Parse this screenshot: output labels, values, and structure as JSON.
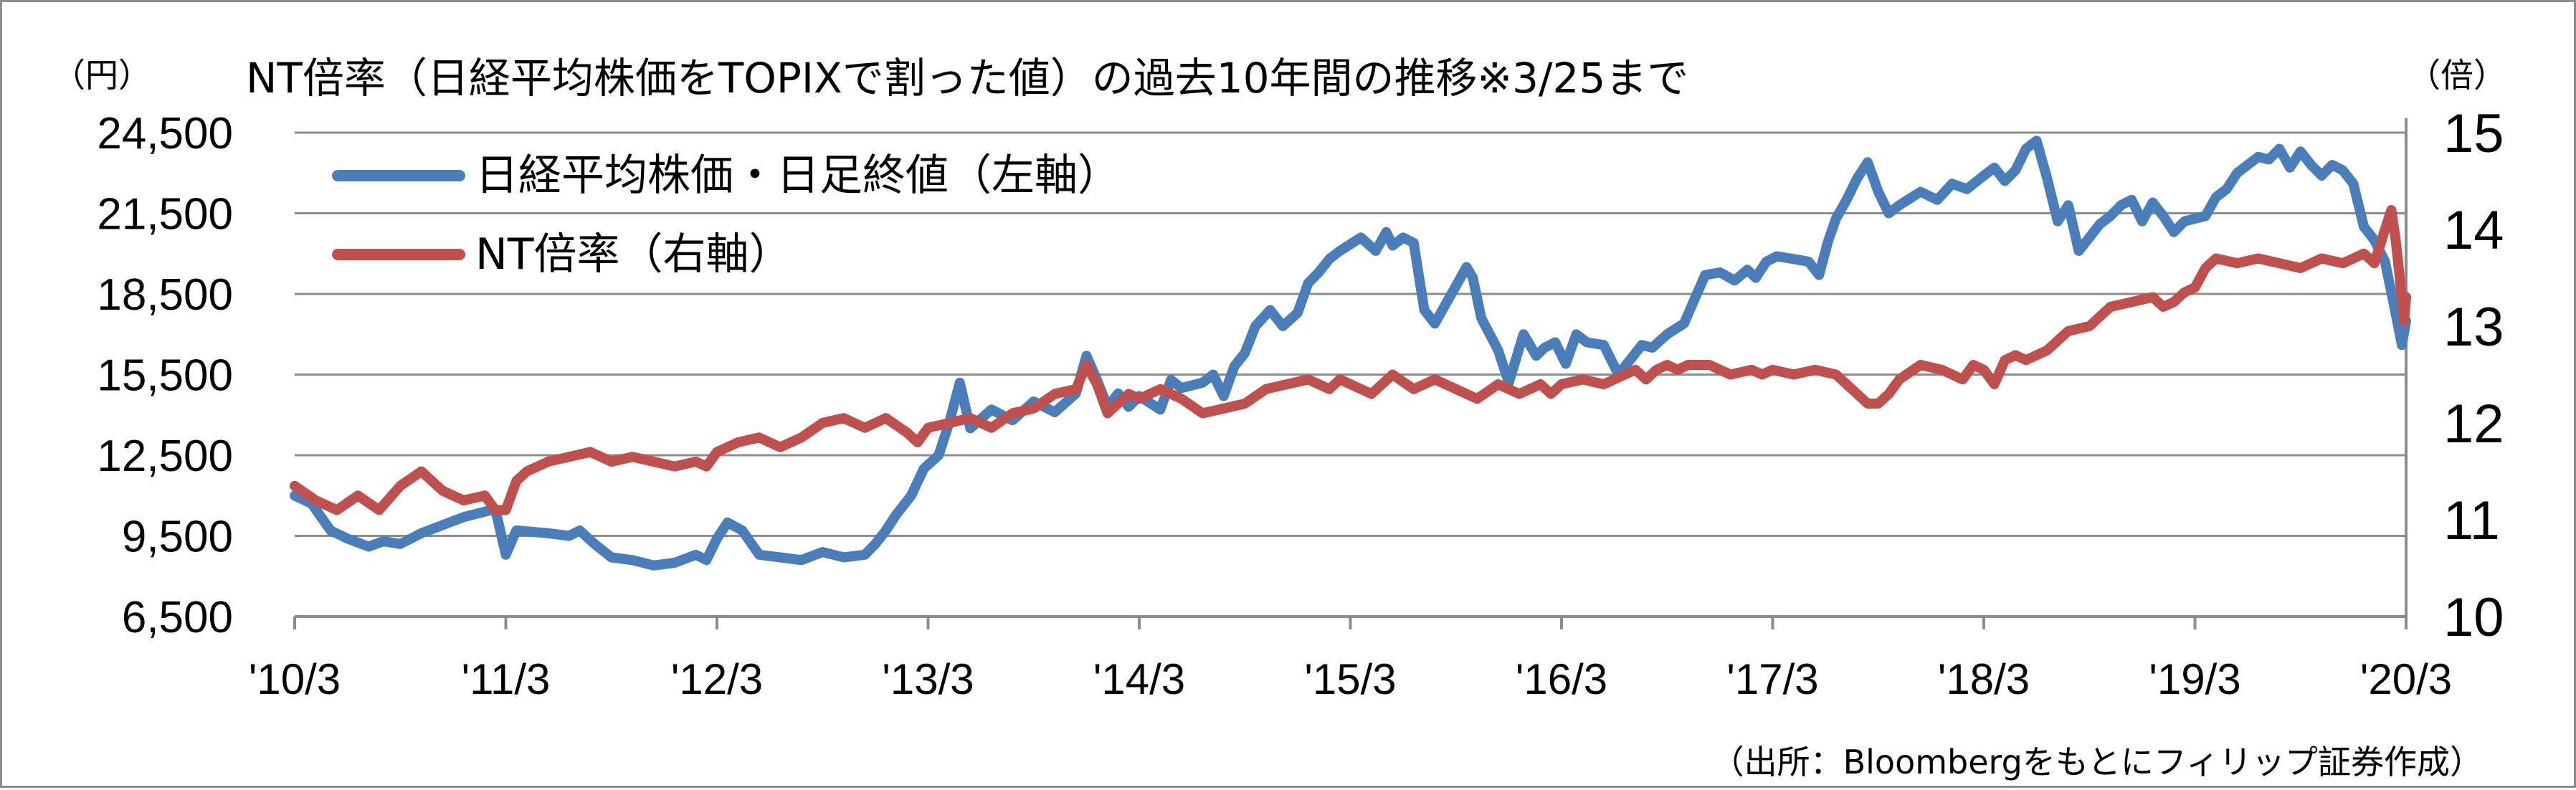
{
  "chart_data": {
    "type": "line",
    "title": "NT倍率（日経平均株価をTOPIXで割った値）の過去10年間の推移※3/25まで",
    "left_unit": "（円）",
    "right_unit": "（倍）",
    "source": "（出所：Bloombergをもとにフィリップ証券作成）",
    "x_tick_labels": [
      "'10/3",
      "'11/3",
      "'12/3",
      "'13/3",
      "'14/3",
      "'15/3",
      "'16/3",
      "'17/3",
      "'18/3",
      "'19/3",
      "'20/3"
    ],
    "x_range": [
      2010.0,
      2020.0
    ],
    "left_axis": {
      "ticks": [
        "6,500",
        "9,500",
        "12,500",
        "15,500",
        "18,500",
        "21,500",
        "24,500"
      ],
      "ylim": [
        6500,
        24500
      ]
    },
    "right_axis": {
      "ticks": [
        "10",
        "11",
        "12",
        "13",
        "14",
        "15"
      ],
      "ylim": [
        10,
        15
      ]
    },
    "grid": true,
    "legend_position": "top-left",
    "series": [
      {
        "name": "日経平均株価・日足終値（左軸）",
        "axis": "left",
        "color": "#4a7ebb",
        "points": [
          [
            2010.0,
            11000
          ],
          [
            2010.08,
            10700
          ],
          [
            2010.17,
            9700
          ],
          [
            2010.25,
            9400
          ],
          [
            2010.35,
            9100
          ],
          [
            2010.42,
            9300
          ],
          [
            2010.5,
            9200
          ],
          [
            2010.6,
            9600
          ],
          [
            2010.7,
            9900
          ],
          [
            2010.8,
            10200
          ],
          [
            2010.9,
            10400
          ],
          [
            2010.95,
            10500
          ],
          [
            2011.0,
            8800
          ],
          [
            2011.05,
            9700
          ],
          [
            2011.2,
            9600
          ],
          [
            2011.3,
            9500
          ],
          [
            2011.35,
            9700
          ],
          [
            2011.42,
            9200
          ],
          [
            2011.5,
            8700
          ],
          [
            2011.6,
            8600
          ],
          [
            2011.7,
            8400
          ],
          [
            2011.8,
            8500
          ],
          [
            2011.9,
            8800
          ],
          [
            2011.95,
            8600
          ],
          [
            2012.0,
            9400
          ],
          [
            2012.05,
            10000
          ],
          [
            2012.12,
            9700
          ],
          [
            2012.2,
            8800
          ],
          [
            2012.3,
            8700
          ],
          [
            2012.4,
            8600
          ],
          [
            2012.5,
            8900
          ],
          [
            2012.6,
            8700
          ],
          [
            2012.7,
            8800
          ],
          [
            2012.75,
            9200
          ],
          [
            2012.8,
            9700
          ],
          [
            2012.85,
            10300
          ],
          [
            2012.92,
            11000
          ],
          [
            2012.98,
            12000
          ],
          [
            2013.05,
            12500
          ],
          [
            2013.1,
            13700
          ],
          [
            2013.15,
            15200
          ],
          [
            2013.2,
            13500
          ],
          [
            2013.3,
            14200
          ],
          [
            2013.4,
            13800
          ],
          [
            2013.5,
            14500
          ],
          [
            2013.6,
            14100
          ],
          [
            2013.7,
            14800
          ],
          [
            2013.75,
            16200
          ],
          [
            2013.8,
            15300
          ],
          [
            2013.85,
            14300
          ],
          [
            2013.9,
            14800
          ],
          [
            2013.95,
            14300
          ],
          [
            2014.0,
            14700
          ],
          [
            2014.1,
            14200
          ],
          [
            2014.15,
            15300
          ],
          [
            2014.2,
            15000
          ],
          [
            2014.3,
            15200
          ],
          [
            2014.35,
            15500
          ],
          [
            2014.4,
            14700
          ],
          [
            2014.45,
            15800
          ],
          [
            2014.5,
            16300
          ],
          [
            2014.55,
            17300
          ],
          [
            2014.62,
            17900
          ],
          [
            2014.68,
            17300
          ],
          [
            2014.75,
            17800
          ],
          [
            2014.8,
            18900
          ],
          [
            2014.85,
            19300
          ],
          [
            2014.9,
            19800
          ],
          [
            2014.95,
            20100
          ],
          [
            2015.05,
            20600
          ],
          [
            2015.12,
            20100
          ],
          [
            2015.17,
            20800
          ],
          [
            2015.2,
            20300
          ],
          [
            2015.25,
            20600
          ],
          [
            2015.3,
            20400
          ],
          [
            2015.35,
            17900
          ],
          [
            2015.4,
            17400
          ],
          [
            2015.45,
            18100
          ],
          [
            2015.5,
            18800
          ],
          [
            2015.55,
            19500
          ],
          [
            2015.58,
            19100
          ],
          [
            2015.62,
            17600
          ],
          [
            2015.7,
            16400
          ],
          [
            2015.75,
            15200
          ],
          [
            2015.82,
            17000
          ],
          [
            2015.88,
            16200
          ],
          [
            2015.92,
            16500
          ],
          [
            2015.97,
            16700
          ],
          [
            2016.02,
            15900
          ],
          [
            2016.07,
            17000
          ],
          [
            2016.12,
            16700
          ],
          [
            2016.2,
            16600
          ],
          [
            2016.27,
            15500
          ],
          [
            2016.33,
            16100
          ],
          [
            2016.38,
            16600
          ],
          [
            2016.43,
            16500
          ],
          [
            2016.5,
            17000
          ],
          [
            2016.58,
            17400
          ],
          [
            2016.63,
            18300
          ],
          [
            2016.68,
            19200
          ],
          [
            2016.75,
            19300
          ],
          [
            2016.82,
            19000
          ],
          [
            2016.88,
            19400
          ],
          [
            2016.92,
            19100
          ],
          [
            2016.97,
            19700
          ],
          [
            2017.02,
            19900
          ],
          [
            2017.1,
            19800
          ],
          [
            2017.17,
            19700
          ],
          [
            2017.22,
            19200
          ],
          [
            2017.26,
            20400
          ],
          [
            2017.3,
            21300
          ],
          [
            2017.35,
            22000
          ],
          [
            2017.4,
            22800
          ],
          [
            2017.45,
            23400
          ],
          [
            2017.5,
            22300
          ],
          [
            2017.55,
            21500
          ],
          [
            2017.6,
            21800
          ],
          [
            2017.7,
            22300
          ],
          [
            2017.78,
            22000
          ],
          [
            2017.85,
            22600
          ],
          [
            2017.92,
            22400
          ],
          [
            2018.0,
            22900
          ],
          [
            2018.05,
            23200
          ],
          [
            2018.1,
            22700
          ],
          [
            2018.15,
            23100
          ],
          [
            2018.2,
            23900
          ],
          [
            2018.25,
            24200
          ],
          [
            2018.3,
            22800
          ],
          [
            2018.35,
            21200
          ],
          [
            2018.4,
            21800
          ],
          [
            2018.45,
            20100
          ],
          [
            2018.5,
            20600
          ],
          [
            2018.55,
            21100
          ],
          [
            2018.6,
            21400
          ],
          [
            2018.65,
            21800
          ],
          [
            2018.7,
            22000
          ],
          [
            2018.75,
            21200
          ],
          [
            2018.8,
            21900
          ],
          [
            2018.85,
            21400
          ],
          [
            2018.9,
            20800
          ],
          [
            2018.95,
            21200
          ],
          [
            2019.0,
            21300
          ],
          [
            2019.05,
            21400
          ],
          [
            2019.1,
            22100
          ],
          [
            2019.15,
            22400
          ],
          [
            2019.2,
            23000
          ],
          [
            2019.25,
            23300
          ],
          [
            2019.3,
            23600
          ],
          [
            2019.35,
            23500
          ],
          [
            2019.4,
            23900
          ],
          [
            2019.45,
            23200
          ],
          [
            2019.5,
            23800
          ],
          [
            2019.55,
            23300
          ],
          [
            2019.6,
            22900
          ],
          [
            2019.65,
            23300
          ],
          [
            2019.7,
            23100
          ],
          [
            2019.75,
            22600
          ],
          [
            2019.8,
            21000
          ],
          [
            2019.85,
            20500
          ],
          [
            2019.9,
            19700
          ],
          [
            2019.95,
            17800
          ],
          [
            2019.98,
            16600
          ],
          [
            2020.0,
            17500
          ]
        ]
      },
      {
        "name": "NT倍率（右軸）",
        "axis": "right",
        "color": "#c0504d",
        "points": [
          [
            2010.0,
            11.35
          ],
          [
            2010.1,
            11.2
          ],
          [
            2010.2,
            11.1
          ],
          [
            2010.3,
            11.25
          ],
          [
            2010.4,
            11.1
          ],
          [
            2010.5,
            11.35
          ],
          [
            2010.6,
            11.5
          ],
          [
            2010.7,
            11.3
          ],
          [
            2010.8,
            11.2
          ],
          [
            2010.9,
            11.25
          ],
          [
            2010.95,
            11.1
          ],
          [
            2011.0,
            11.1
          ],
          [
            2011.05,
            11.4
          ],
          [
            2011.1,
            11.5
          ],
          [
            2011.2,
            11.6
          ],
          [
            2011.3,
            11.65
          ],
          [
            2011.4,
            11.7
          ],
          [
            2011.5,
            11.6
          ],
          [
            2011.6,
            11.65
          ],
          [
            2011.7,
            11.6
          ],
          [
            2011.8,
            11.55
          ],
          [
            2011.9,
            11.6
          ],
          [
            2011.95,
            11.55
          ],
          [
            2012.0,
            11.7
          ],
          [
            2012.1,
            11.8
          ],
          [
            2012.2,
            11.85
          ],
          [
            2012.3,
            11.75
          ],
          [
            2012.4,
            11.85
          ],
          [
            2012.5,
            12.0
          ],
          [
            2012.6,
            12.05
          ],
          [
            2012.7,
            11.95
          ],
          [
            2012.8,
            12.05
          ],
          [
            2012.9,
            11.9
          ],
          [
            2012.95,
            11.8
          ],
          [
            2013.0,
            11.95
          ],
          [
            2013.1,
            12.0
          ],
          [
            2013.2,
            12.05
          ],
          [
            2013.3,
            11.95
          ],
          [
            2013.4,
            12.1
          ],
          [
            2013.5,
            12.15
          ],
          [
            2013.6,
            12.3
          ],
          [
            2013.7,
            12.35
          ],
          [
            2013.75,
            12.6
          ],
          [
            2013.8,
            12.4
          ],
          [
            2013.85,
            12.1
          ],
          [
            2013.95,
            12.3
          ],
          [
            2014.0,
            12.25
          ],
          [
            2014.1,
            12.35
          ],
          [
            2014.2,
            12.25
          ],
          [
            2014.3,
            12.1
          ],
          [
            2014.4,
            12.15
          ],
          [
            2014.5,
            12.2
          ],
          [
            2014.6,
            12.35
          ],
          [
            2014.7,
            12.4
          ],
          [
            2014.8,
            12.45
          ],
          [
            2014.9,
            12.35
          ],
          [
            2014.95,
            12.45
          ],
          [
            2015.0,
            12.4
          ],
          [
            2015.1,
            12.3
          ],
          [
            2015.2,
            12.5
          ],
          [
            2015.3,
            12.35
          ],
          [
            2015.4,
            12.45
          ],
          [
            2015.5,
            12.35
          ],
          [
            2015.6,
            12.25
          ],
          [
            2015.7,
            12.4
          ],
          [
            2015.8,
            12.3
          ],
          [
            2015.9,
            12.4
          ],
          [
            2015.95,
            12.3
          ],
          [
            2016.0,
            12.4
          ],
          [
            2016.1,
            12.45
          ],
          [
            2016.2,
            12.4
          ],
          [
            2016.3,
            12.5
          ],
          [
            2016.35,
            12.55
          ],
          [
            2016.4,
            12.45
          ],
          [
            2016.45,
            12.55
          ],
          [
            2016.5,
            12.6
          ],
          [
            2016.55,
            12.55
          ],
          [
            2016.6,
            12.6
          ],
          [
            2016.7,
            12.6
          ],
          [
            2016.8,
            12.5
          ],
          [
            2016.9,
            12.55
          ],
          [
            2016.95,
            12.5
          ],
          [
            2017.0,
            12.55
          ],
          [
            2017.1,
            12.5
          ],
          [
            2017.2,
            12.55
          ],
          [
            2017.3,
            12.5
          ],
          [
            2017.4,
            12.3
          ],
          [
            2017.45,
            12.2
          ],
          [
            2017.5,
            12.2
          ],
          [
            2017.55,
            12.3
          ],
          [
            2017.6,
            12.45
          ],
          [
            2017.7,
            12.6
          ],
          [
            2017.8,
            12.55
          ],
          [
            2017.9,
            12.45
          ],
          [
            2017.95,
            12.6
          ],
          [
            2018.0,
            12.55
          ],
          [
            2018.05,
            12.4
          ],
          [
            2018.1,
            12.65
          ],
          [
            2018.15,
            12.7
          ],
          [
            2018.2,
            12.65
          ],
          [
            2018.3,
            12.75
          ],
          [
            2018.4,
            12.95
          ],
          [
            2018.5,
            13.0
          ],
          [
            2018.6,
            13.2
          ],
          [
            2018.7,
            13.25
          ],
          [
            2018.8,
            13.3
          ],
          [
            2018.85,
            13.2
          ],
          [
            2018.9,
            13.25
          ],
          [
            2018.95,
            13.35
          ],
          [
            2019.0,
            13.4
          ],
          [
            2019.05,
            13.6
          ],
          [
            2019.1,
            13.7
          ],
          [
            2019.2,
            13.65
          ],
          [
            2019.3,
            13.7
          ],
          [
            2019.4,
            13.65
          ],
          [
            2019.5,
            13.6
          ],
          [
            2019.6,
            13.7
          ],
          [
            2019.7,
            13.65
          ],
          [
            2019.8,
            13.75
          ],
          [
            2019.85,
            13.65
          ],
          [
            2019.9,
            14.0
          ],
          [
            2019.93,
            14.2
          ],
          [
            2019.95,
            13.9
          ],
          [
            2019.97,
            13.5
          ],
          [
            2019.99,
            13.05
          ],
          [
            2020.0,
            13.3
          ]
        ]
      }
    ]
  }
}
